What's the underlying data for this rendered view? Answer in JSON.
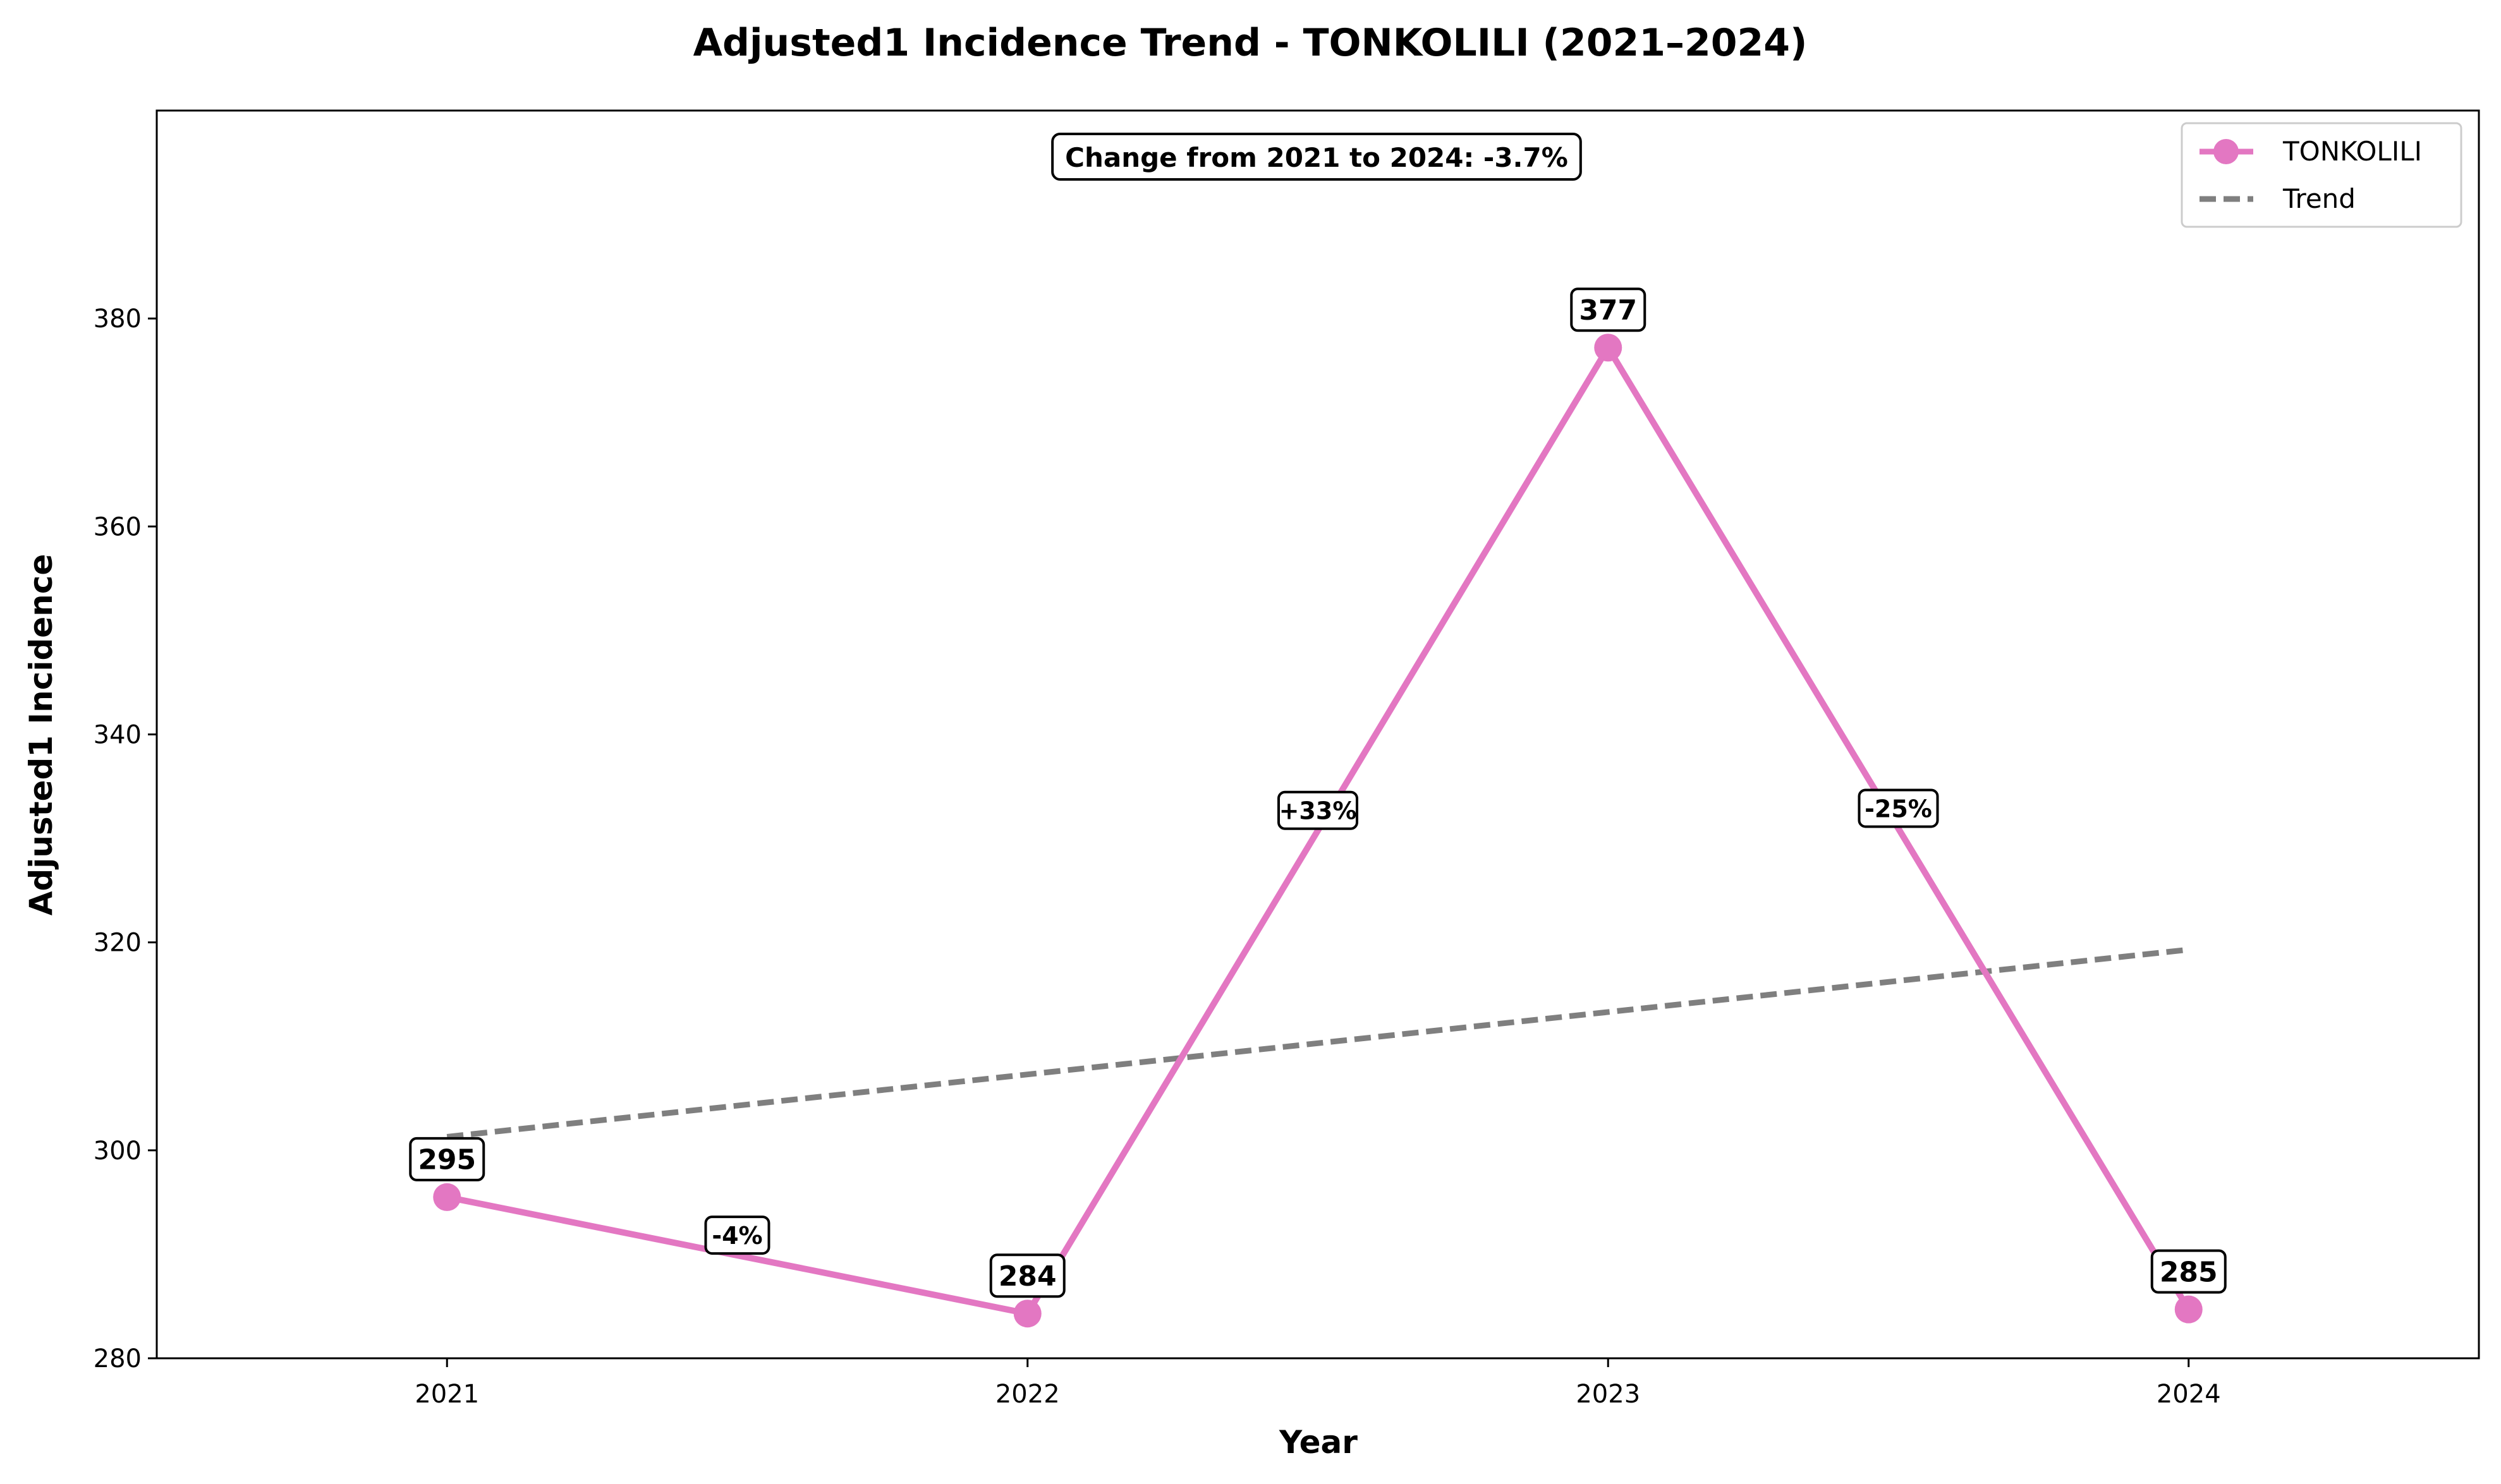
{
  "chart_data": {
    "type": "line",
    "title": "Adjusted1 Incidence Trend - TONKOLILI (2021–2024)",
    "xlabel": "Year",
    "ylabel": "Adjusted1 Incidence",
    "categories": [
      "2021",
      "2022",
      "2023",
      "2024"
    ],
    "series": [
      {
        "name": "TONKOLILI",
        "values": [
          295.5,
          284.3,
          377.2,
          284.7
        ],
        "color": "#e377c2",
        "style": "solid-with-markers"
      },
      {
        "name": "Trend",
        "values": [
          301.3,
          307.3,
          313.3,
          319.3
        ],
        "color": "#7f7f7f",
        "style": "dashed"
      }
    ],
    "data_labels": [
      "295",
      "284",
      "377",
      "285"
    ],
    "change_labels": [
      "-4%",
      "+33%",
      "-25%"
    ],
    "summary": "Change from 2021 to 2024: -3.7%",
    "ylim": [
      280,
      400
    ],
    "yticks": [
      280,
      300,
      320,
      340,
      360,
      380
    ],
    "grid": false,
    "legend_position": "top-right"
  }
}
